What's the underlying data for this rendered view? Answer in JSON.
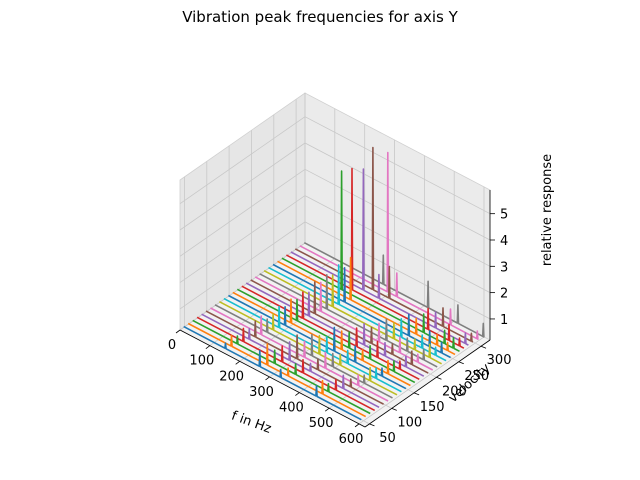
{
  "chart_data": {
    "type": "line",
    "subtype": "3d-waterfall",
    "title": "Vibration peak frequencies for axis Y",
    "xlabel": "f in Hz",
    "ylabel": "velocity",
    "zlabel": "relative response",
    "xlim": [
      0,
      620
    ],
    "ylim": [
      40,
      320
    ],
    "zlim": [
      0.2,
      5.9
    ],
    "xticks": [
      "0",
      "100",
      "200",
      "300",
      "400",
      "500",
      "600"
    ],
    "yticks": [
      "50",
      "100",
      "150",
      "200",
      "250",
      "300"
    ],
    "zticks": [
      "1",
      "2",
      "3",
      "4",
      "5"
    ],
    "grid": true,
    "colors": [
      "#1f77b4",
      "#ff7f0e",
      "#2ca02c",
      "#d62728",
      "#9467bd",
      "#8c564b",
      "#e377c2",
      "#7f7f7f",
      "#bcbd22",
      "#17becf"
    ],
    "series": [
      {
        "velocity": 45,
        "peaks": [
          [
            145,
            0.5
          ],
          [
            260,
            0.9
          ],
          [
            330,
            0.6
          ],
          [
            450,
            0.7
          ]
        ]
      },
      {
        "velocity": 55,
        "peaks": [
          [
            150,
            0.7
          ],
          [
            270,
            1.1
          ],
          [
            340,
            0.6
          ],
          [
            455,
            0.8
          ]
        ]
      },
      {
        "velocity": 65,
        "peaks": [
          [
            155,
            0.6
          ],
          [
            280,
            0.8
          ],
          [
            350,
            0.7
          ],
          [
            460,
            0.6
          ]
        ]
      },
      {
        "velocity": 75,
        "peaks": [
          [
            160,
            0.8
          ],
          [
            290,
            0.9
          ],
          [
            360,
            0.8
          ],
          [
            470,
            0.7
          ]
        ]
      },
      {
        "velocity": 85,
        "peaks": [
          [
            165,
            0.7
          ],
          [
            300,
            1.0
          ],
          [
            370,
            0.6
          ],
          [
            480,
            0.8
          ]
        ]
      },
      {
        "velocity": 95,
        "peaks": [
          [
            170,
            0.9
          ],
          [
            310,
            1.2
          ],
          [
            380,
            0.7
          ],
          [
            490,
            0.6
          ]
        ]
      },
      {
        "velocity": 105,
        "peaks": [
          [
            175,
            1.0
          ],
          [
            320,
            0.9
          ],
          [
            390,
            0.9
          ],
          [
            500,
            0.7
          ]
        ]
      },
      {
        "velocity": 115,
        "peaks": [
          [
            180,
            0.8
          ],
          [
            330,
            1.1
          ],
          [
            400,
            0.8
          ],
          [
            505,
            0.6
          ]
        ]
      },
      {
        "velocity": 125,
        "peaks": [
          [
            185,
            0.9
          ],
          [
            340,
            1.0
          ],
          [
            410,
            0.7
          ],
          [
            510,
            0.8
          ]
        ]
      },
      {
        "velocity": 135,
        "peaks": [
          [
            190,
            1.1
          ],
          [
            350,
            0.9
          ],
          [
            420,
            0.8
          ],
          [
            515,
            0.7
          ]
        ]
      },
      {
        "velocity": 145,
        "peaks": [
          [
            195,
            1.0
          ],
          [
            360,
            1.2
          ],
          [
            430,
            0.9
          ],
          [
            520,
            0.6
          ]
        ]
      },
      {
        "velocity": 155,
        "peaks": [
          [
            200,
            1.2
          ],
          [
            370,
            1.0
          ],
          [
            440,
            0.7
          ],
          [
            525,
            0.8
          ]
        ]
      },
      {
        "velocity": 165,
        "peaks": [
          [
            205,
            1.1
          ],
          [
            380,
            0.9
          ],
          [
            450,
            0.8
          ],
          [
            530,
            0.7
          ]
        ]
      },
      {
        "velocity": 175,
        "peaks": [
          [
            210,
            1.3
          ],
          [
            390,
            1.0
          ],
          [
            460,
            0.9
          ],
          [
            535,
            0.6
          ]
        ]
      },
      {
        "velocity": 185,
        "peaks": [
          [
            215,
            1.2
          ],
          [
            400,
            1.1
          ],
          [
            470,
            0.8
          ],
          [
            540,
            0.7
          ]
        ]
      },
      {
        "velocity": 195,
        "peaks": [
          [
            220,
            1.5
          ],
          [
            410,
            0.9
          ],
          [
            480,
            0.7
          ],
          [
            545,
            0.8
          ]
        ]
      },
      {
        "velocity": 205,
        "peaks": [
          [
            225,
            1.4
          ],
          [
            420,
            1.0
          ],
          [
            490,
            0.9
          ],
          [
            550,
            0.6
          ]
        ]
      },
      {
        "velocity": 215,
        "peaks": [
          [
            230,
            1.6
          ],
          [
            430,
            1.1
          ],
          [
            500,
            0.8
          ],
          [
            555,
            0.7
          ]
        ]
      },
      {
        "velocity": 225,
        "peaks": [
          [
            235,
            1.5
          ],
          [
            440,
            0.9
          ],
          [
            510,
            0.7
          ],
          [
            560,
            0.8
          ]
        ]
      },
      {
        "velocity": 235,
        "peaks": [
          [
            240,
            1.8
          ],
          [
            450,
            1.0
          ],
          [
            520,
            0.8
          ],
          [
            565,
            0.6
          ]
        ]
      },
      {
        "velocity": 245,
        "peaks": [
          [
            245,
            1.6
          ],
          [
            460,
            1.1
          ],
          [
            530,
            0.9
          ],
          [
            570,
            0.7
          ]
        ]
      },
      {
        "velocity": 255,
        "peaks": [
          [
            250,
            1.9
          ],
          [
            470,
            0.9
          ],
          [
            540,
            0.7
          ],
          [
            575,
            0.6
          ]
        ]
      },
      {
        "velocity": 265,
        "peaks": [
          [
            205,
            4.8
          ],
          [
            480,
            1.0
          ],
          [
            550,
            0.8
          ],
          [
            580,
            0.7
          ]
        ]
      },
      {
        "velocity": 275,
        "peaks": [
          [
            225,
            4.9
          ],
          [
            480,
            1.1
          ],
          [
            550,
            0.9
          ],
          [
            585,
            0.6
          ]
        ]
      },
      {
        "velocity": 285,
        "peaks": [
          [
            248,
            4.9
          ],
          [
            300,
            1.2
          ],
          [
            490,
            0.9
          ],
          [
            590,
            0.7
          ]
        ]
      },
      {
        "velocity": 295,
        "peaks": [
          [
            265,
            5.7
          ],
          [
            320,
            1.5
          ],
          [
            500,
            1.0
          ],
          [
            595,
            0.6
          ]
        ]
      },
      {
        "velocity": 305,
        "peaks": [
          [
            300,
            5.6
          ],
          [
            330,
            1.2
          ],
          [
            510,
            0.9
          ],
          [
            600,
            0.6
          ]
        ]
      },
      {
        "velocity": 315,
        "peaks": [
          [
            270,
            1.4
          ],
          [
            420,
            1.3
          ],
          [
            520,
            1.0
          ],
          [
            605,
            0.8
          ]
        ]
      }
    ]
  }
}
